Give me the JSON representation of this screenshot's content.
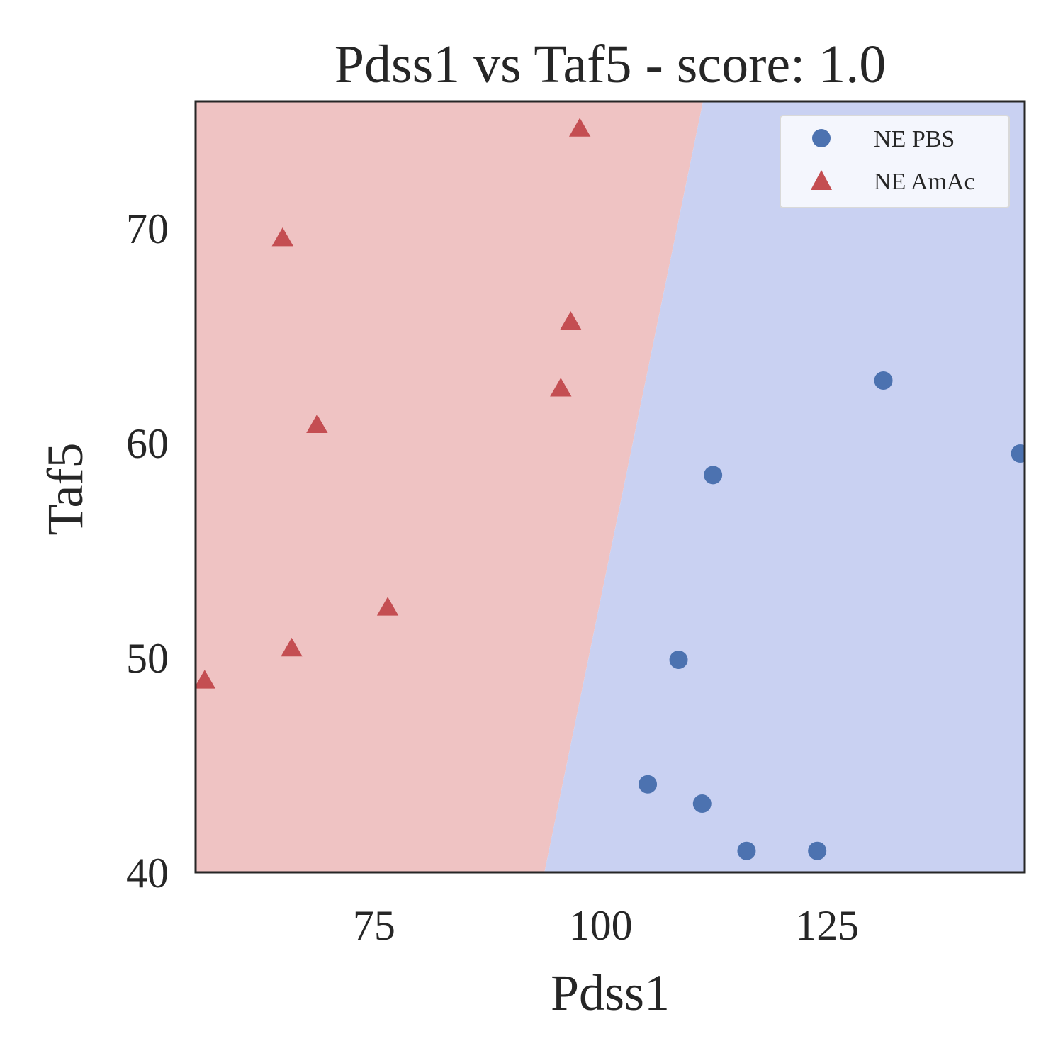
{
  "chart_data": {
    "type": "scatter",
    "title": "Pdss1 vs Taf5 - score: 1.0",
    "xlabel": "Pdss1",
    "ylabel": "Taf5",
    "xlim": [
      55.3,
      146.8
    ],
    "ylim": [
      40,
      75.9
    ],
    "xticks": [
      75,
      100,
      125
    ],
    "yticks": [
      40,
      50,
      60,
      70
    ],
    "grid": false,
    "legend_position": "top-right",
    "decision_boundary": {
      "top": [
        111.3,
        75.9
      ],
      "bottom": [
        93.8,
        40
      ],
      "left_region_color": "#efc3c3",
      "right_region_color": "#c9d1f2"
    },
    "series": [
      {
        "name": "NE PBS",
        "marker": "circle",
        "color": "#4c72b0",
        "points": [
          [
            131.2,
            62.9
          ],
          [
            146.3,
            59.5
          ],
          [
            112.4,
            58.5
          ],
          [
            108.6,
            49.9
          ],
          [
            105.2,
            44.1
          ],
          [
            111.2,
            43.2
          ],
          [
            116.1,
            41.0
          ],
          [
            123.9,
            41.0
          ]
        ]
      },
      {
        "name": "NE AmAc",
        "marker": "triangle",
        "color": "#c44e52",
        "points": [
          [
            97.7,
            74.6
          ],
          [
            64.9,
            69.5
          ],
          [
            96.7,
            65.6
          ],
          [
            95.6,
            62.5
          ],
          [
            68.7,
            60.8
          ],
          [
            76.5,
            52.3
          ],
          [
            65.9,
            50.4
          ],
          [
            56.3,
            48.9
          ]
        ]
      }
    ]
  }
}
